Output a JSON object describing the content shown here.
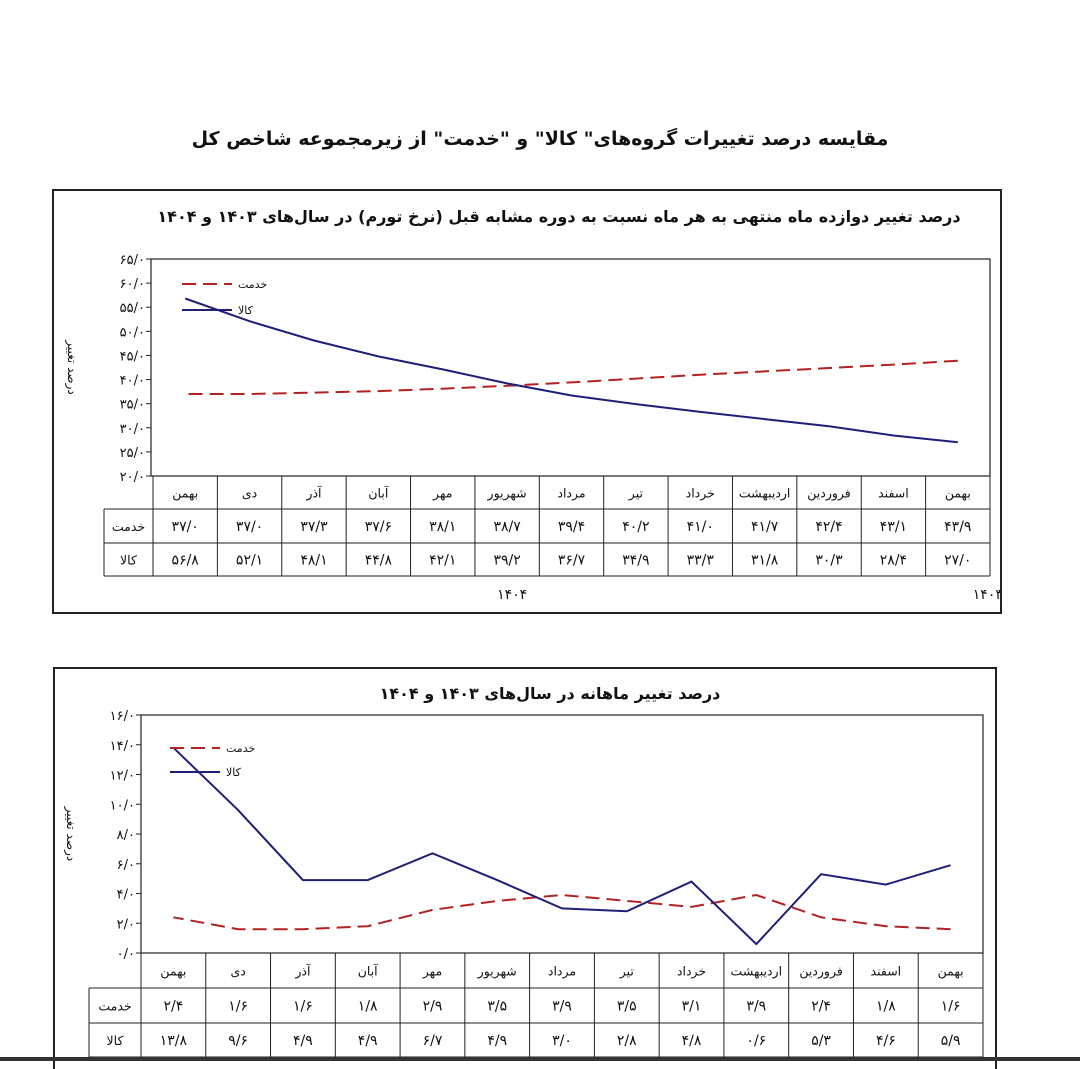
{
  "page": {
    "title": "مقایسه درصد تغییرات گروه‌های\" کالا\" و \"خدمت\" از زیرمجموعه شاخص کل"
  },
  "colors": {
    "service": "#b22222",
    "goods": "#1f1f7a",
    "frame": "#222222"
  },
  "chart_data": [
    {
      "type": "line",
      "title": "درصد تغییر دوازده ماه منتهی به هر ماه نسبت به دوره مشابه قبل (نرخ تورم) در سال‌های ۱۴۰۳ و ۱۴۰۴",
      "ylabel": "درصد تغییر",
      "ylim": [
        20,
        65
      ],
      "yticks": [
        20,
        25,
        30,
        35,
        40,
        45,
        50,
        55,
        60,
        65
      ],
      "ytick_labels": [
        "۲۰/۰",
        "۲۵/۰",
        "۳۰/۰",
        "۳۵/۰",
        "۴۰/۰",
        "۴۵/۰",
        "۵۰/۰",
        "۵۵/۰",
        "۶۰/۰",
        "۶۵/۰"
      ],
      "categories": [
        "بهمن",
        "اسفند",
        "فروردین",
        "اردیبهشت",
        "خرداد",
        "تیر",
        "مرداد",
        "شهریور",
        "مهر",
        "آبان",
        "آذر",
        "دی",
        "بهمن"
      ],
      "legend_position": "top-left",
      "series": [
        {
          "name": "خدمت",
          "style": "dashed",
          "values": [
            43.9,
            43.1,
            42.4,
            41.7,
            41.0,
            40.2,
            39.4,
            38.7,
            38.1,
            37.6,
            37.3,
            37.0,
            37.0
          ],
          "labels": [
            "۴۳/۹",
            "۴۳/۱",
            "۴۲/۴",
            "۴۱/۷",
            "۴۱/۰",
            "۴۰/۲",
            "۳۹/۴",
            "۳۸/۷",
            "۳۸/۱",
            "۳۷/۶",
            "۳۷/۳",
            "۳۷/۰",
            "۳۷/۰"
          ]
        },
        {
          "name": "کالا",
          "style": "solid",
          "values": [
            27.0,
            28.4,
            30.3,
            31.8,
            33.3,
            34.9,
            36.7,
            39.2,
            42.1,
            44.8,
            48.1,
            52.1,
            56.8
          ],
          "labels": [
            "۲۷/۰",
            "۲۸/۴",
            "۳۰/۳",
            "۳۱/۸",
            "۳۳/۳",
            "۳۴/۹",
            "۳۶/۷",
            "۳۹/۲",
            "۴۲/۱",
            "۴۴/۸",
            "۴۸/۱",
            "۵۲/۱",
            "۵۶/۸"
          ]
        }
      ],
      "years": [
        "۱۴۰۳",
        "۱۴۰۴"
      ]
    },
    {
      "type": "line",
      "title": "درصد تغییر ماهانه در سال‌های ۱۴۰۳ و ۱۴۰۴",
      "ylabel": "درصد تغییر",
      "ylim": [
        0,
        16
      ],
      "yticks": [
        0,
        2,
        4,
        6,
        8,
        10,
        12,
        14,
        16
      ],
      "ytick_labels": [
        "۰/۰",
        "۲/۰",
        "۴/۰",
        "۶/۰",
        "۸/۰",
        "۱۰/۰",
        "۱۲/۰",
        "۱۴/۰",
        "۱۶/۰"
      ],
      "categories": [
        "بهمن",
        "اسفند",
        "فروردین",
        "اردیبهشت",
        "خرداد",
        "تیر",
        "مرداد",
        "شهریور",
        "مهر",
        "آبان",
        "آذر",
        "دی",
        "بهمن"
      ],
      "legend_position": "top-left",
      "series": [
        {
          "name": "خدمت",
          "style": "dashed",
          "values": [
            1.6,
            1.8,
            2.4,
            3.9,
            3.1,
            3.5,
            3.9,
            3.5,
            2.9,
            1.8,
            1.6,
            1.6,
            2.4
          ],
          "labels": [
            "۱/۶",
            "۱/۸",
            "۲/۴",
            "۳/۹",
            "۳/۱",
            "۳/۵",
            "۳/۹",
            "۳/۵",
            "۲/۹",
            "۱/۸",
            "۱/۶",
            "۱/۶",
            "۲/۴"
          ]
        },
        {
          "name": "کالا",
          "style": "solid",
          "values": [
            5.9,
            4.6,
            5.3,
            0.6,
            4.8,
            2.8,
            3.0,
            4.9,
            6.7,
            4.9,
            4.9,
            9.6,
            13.8
          ],
          "labels": [
            "۵/۹",
            "۴/۶",
            "۵/۳",
            "۰/۶",
            "۴/۸",
            "۲/۸",
            "۳/۰",
            "۴/۹",
            "۶/۷",
            "۴/۹",
            "۴/۹",
            "۹/۶",
            "۱۳/۸"
          ]
        }
      ]
    }
  ]
}
